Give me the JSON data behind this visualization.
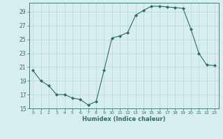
{
  "x": [
    0,
    1,
    2,
    3,
    4,
    5,
    6,
    7,
    8,
    9,
    10,
    11,
    12,
    13,
    14,
    15,
    16,
    17,
    18,
    19,
    20,
    21,
    22,
    23
  ],
  "y": [
    20.5,
    19.0,
    18.3,
    17.0,
    17.0,
    16.5,
    16.3,
    15.5,
    16.0,
    20.5,
    25.2,
    25.5,
    26.0,
    28.5,
    29.2,
    29.8,
    29.8,
    29.7,
    29.6,
    29.5,
    26.5,
    23.0,
    21.3,
    21.2
  ],
  "xlabel": "Humidex (Indice chaleur)",
  "ylim": [
    15,
    30
  ],
  "xlim": [
    -0.5,
    23.5
  ],
  "yticks": [
    15,
    17,
    19,
    21,
    23,
    25,
    27,
    29
  ],
  "xticks": [
    0,
    1,
    2,
    3,
    4,
    5,
    6,
    7,
    8,
    9,
    10,
    11,
    12,
    13,
    14,
    15,
    16,
    17,
    18,
    19,
    20,
    21,
    22,
    23
  ],
  "line_color": "#2d6e63",
  "marker": "D",
  "marker_size": 2.0,
  "bg_color": "#d8eeee",
  "grid_color": "#b8d8d8",
  "tick_color": "#2d6e63",
  "label_color": "#2d6e63",
  "spine_color": "#2d6e63"
}
